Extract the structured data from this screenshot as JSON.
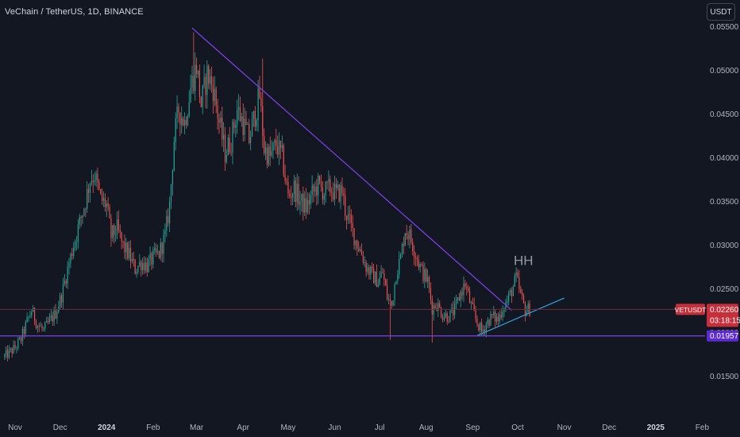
{
  "header": {
    "title": "VeChain / TetherUS, 1D, BINANCE",
    "currency_button": "USDT"
  },
  "annotations": {
    "hh_label": "HH"
  },
  "price_labels": {
    "current_symbol": "VETUSDT",
    "current_price": "0.02260",
    "countdown": "03:18:15",
    "support_price": "0.01957"
  },
  "colors": {
    "background": "#131722",
    "up_candle": "#26a69a",
    "down_candle": "#ef5350",
    "trendline": "#7b3fe4",
    "rising_line": "#2e9bd6",
    "support_line": "#7b3fe4",
    "current_price_line": "#6b2b3a",
    "current_label_bg": "#c62f3a",
    "support_label_bg": "#5b2bd1",
    "axis_text": "#b2b5be"
  },
  "chart_data": {
    "type": "candlestick",
    "title": "VeChain / TetherUS, 1D, BINANCE",
    "y_axis": {
      "position": "right",
      "range": [
        0.0145,
        0.0565
      ],
      "tick_labels": [
        "0.05500",
        "0.05000",
        "0.04500",
        "0.04000",
        "0.03500",
        "0.03000",
        "0.02500",
        "0.02000",
        "0.01500"
      ]
    },
    "x_axis": {
      "range": [
        "2023-10-25",
        "2025-02-05"
      ],
      "tick_labels": [
        {
          "date": "2023-11-01",
          "label": "Nov",
          "bold": false
        },
        {
          "date": "2023-12-01",
          "label": "Dec",
          "bold": false
        },
        {
          "date": "2024-01-01",
          "label": "2024",
          "bold": true
        },
        {
          "date": "2024-02-01",
          "label": "Feb",
          "bold": false
        },
        {
          "date": "2024-03-01",
          "label": "Mar",
          "bold": false
        },
        {
          "date": "2024-04-01",
          "label": "Apr",
          "bold": false
        },
        {
          "date": "2024-05-01",
          "label": "May",
          "bold": false
        },
        {
          "date": "2024-06-01",
          "label": "Jun",
          "bold": false
        },
        {
          "date": "2024-07-01",
          "label": "Jul",
          "bold": false
        },
        {
          "date": "2024-08-01",
          "label": "Aug",
          "bold": false
        },
        {
          "date": "2024-09-01",
          "label": "Sep",
          "bold": false
        },
        {
          "date": "2024-10-01",
          "label": "Oct",
          "bold": false
        },
        {
          "date": "2024-11-01",
          "label": "Nov",
          "bold": false
        },
        {
          "date": "2024-12-01",
          "label": "Dec",
          "bold": false
        },
        {
          "date": "2025-01-01",
          "label": "2025",
          "bold": true
        },
        {
          "date": "2025-02-01",
          "label": "Feb",
          "bold": false
        }
      ]
    },
    "grid": false,
    "legend": "none",
    "candle_interval": "1D",
    "price_path": [
      [
        "2023-10-25",
        0.0172
      ],
      [
        "2023-11-01",
        0.0182
      ],
      [
        "2023-11-05",
        0.0192
      ],
      [
        "2023-11-09",
        0.0212
      ],
      [
        "2023-11-12",
        0.0225
      ],
      [
        "2023-11-16",
        0.0208
      ],
      [
        "2023-11-20",
        0.0202
      ],
      [
        "2023-11-24",
        0.0212
      ],
      [
        "2023-11-28",
        0.0222
      ],
      [
        "2023-12-02",
        0.0242
      ],
      [
        "2023-12-06",
        0.0272
      ],
      [
        "2023-12-10",
        0.03
      ],
      [
        "2023-12-14",
        0.0325
      ],
      [
        "2023-12-18",
        0.035
      ],
      [
        "2023-12-21",
        0.0375
      ],
      [
        "2023-12-24",
        0.038
      ],
      [
        "2023-12-28",
        0.0352
      ],
      [
        "2024-01-01",
        0.0345
      ],
      [
        "2024-01-04",
        0.031
      ],
      [
        "2024-01-08",
        0.0318
      ],
      [
        "2024-01-12",
        0.0298
      ],
      [
        "2024-01-16",
        0.0288
      ],
      [
        "2024-01-20",
        0.0272
      ],
      [
        "2024-01-24",
        0.028
      ],
      [
        "2024-01-28",
        0.0276
      ],
      [
        "2024-02-01",
        0.0285
      ],
      [
        "2024-02-05",
        0.029
      ],
      [
        "2024-02-09",
        0.031
      ],
      [
        "2024-02-12",
        0.0345
      ],
      [
        "2024-02-15",
        0.042
      ],
      [
        "2024-02-18",
        0.0455
      ],
      [
        "2024-02-22",
        0.044
      ],
      [
        "2024-02-26",
        0.048
      ],
      [
        "2024-03-01",
        0.0505
      ],
      [
        "2024-03-04",
        0.046
      ],
      [
        "2024-03-08",
        0.0495
      ],
      [
        "2024-03-12",
        0.048
      ],
      [
        "2024-03-16",
        0.044
      ],
      [
        "2024-03-20",
        0.0405
      ],
      [
        "2024-03-24",
        0.042
      ],
      [
        "2024-03-28",
        0.0455
      ],
      [
        "2024-04-01",
        0.044
      ],
      [
        "2024-04-05",
        0.042
      ],
      [
        "2024-04-09",
        0.045
      ],
      [
        "2024-04-12",
        0.047
      ],
      [
        "2024-04-15",
        0.041
      ],
      [
        "2024-04-19",
        0.04
      ],
      [
        "2024-04-23",
        0.0415
      ],
      [
        "2024-04-27",
        0.04
      ],
      [
        "2024-05-01",
        0.0355
      ],
      [
        "2024-05-05",
        0.0365
      ],
      [
        "2024-05-09",
        0.035
      ],
      [
        "2024-05-13",
        0.0342
      ],
      [
        "2024-05-17",
        0.0358
      ],
      [
        "2024-05-21",
        0.0368
      ],
      [
        "2024-05-25",
        0.036
      ],
      [
        "2024-05-29",
        0.0365
      ],
      [
        "2024-06-02",
        0.0358
      ],
      [
        "2024-06-06",
        0.0362
      ],
      [
        "2024-06-08",
        0.034
      ],
      [
        "2024-06-11",
        0.0325
      ],
      [
        "2024-06-15",
        0.0305
      ],
      [
        "2024-06-19",
        0.029
      ],
      [
        "2024-06-22",
        0.0275
      ],
      [
        "2024-06-26",
        0.0265
      ],
      [
        "2024-06-30",
        0.0258
      ],
      [
        "2024-07-03",
        0.0268
      ],
      [
        "2024-07-06",
        0.024
      ],
      [
        "2024-07-09",
        0.023
      ],
      [
        "2024-07-12",
        0.0268
      ],
      [
        "2024-07-15",
        0.0285
      ],
      [
        "2024-07-18",
        0.0318
      ],
      [
        "2024-07-21",
        0.031
      ],
      [
        "2024-07-25",
        0.029
      ],
      [
        "2024-07-29",
        0.027
      ],
      [
        "2024-08-02",
        0.0258
      ],
      [
        "2024-08-05",
        0.0228
      ],
      [
        "2024-08-08",
        0.0232
      ],
      [
        "2024-08-12",
        0.022
      ],
      [
        "2024-08-16",
        0.0218
      ],
      [
        "2024-08-20",
        0.0225
      ],
      [
        "2024-08-24",
        0.0245
      ],
      [
        "2024-08-27",
        0.0255
      ],
      [
        "2024-08-30",
        0.0235
      ],
      [
        "2024-09-03",
        0.0215
      ],
      [
        "2024-09-07",
        0.02
      ],
      [
        "2024-09-10",
        0.021
      ],
      [
        "2024-09-14",
        0.0218
      ],
      [
        "2024-09-18",
        0.0214
      ],
      [
        "2024-09-21",
        0.0228
      ],
      [
        "2024-09-24",
        0.0235
      ],
      [
        "2024-09-28",
        0.0252
      ],
      [
        "2024-09-30",
        0.0262
      ],
      [
        "2024-10-03",
        0.0242
      ],
      [
        "2024-10-06",
        0.0225
      ],
      [
        "2024-10-09",
        0.0226
      ]
    ],
    "wick_extremes": [
      {
        "date": "2024-02-28",
        "value": 0.0543
      },
      {
        "date": "2024-04-14",
        "value": 0.0513
      },
      {
        "date": "2024-08-05",
        "value": 0.0188
      },
      {
        "date": "2024-07-08",
        "value": 0.0191
      }
    ],
    "lines": [
      {
        "name": "Descending trendline",
        "from": [
          "2024-02-27",
          0.0548
        ],
        "to": [
          "2024-09-27",
          0.0225
        ]
      },
      {
        "name": "Rising support line",
        "from": [
          "2024-09-04",
          0.0196
        ],
        "to": [
          "2024-11-01",
          0.0239
        ]
      },
      {
        "name": "Horizontal support",
        "value": 0.01957
      },
      {
        "name": "Current price",
        "value": 0.0226
      }
    ],
    "annotation": {
      "text": "HH",
      "date": "2024-10-01",
      "value": 0.0277
    }
  }
}
